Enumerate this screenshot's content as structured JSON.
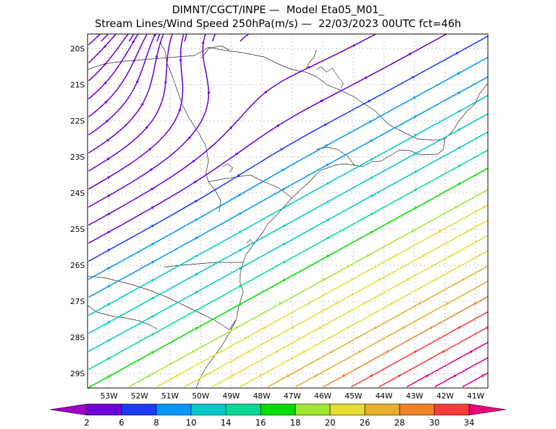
{
  "header": {
    "title_line1": "DIMNT/CGCT/INPE —  Model Eta05_M01_",
    "title_line2": "Stream Lines/Wind Speed 250hPa(m/s) —  22/03/2023 00UTC fct=46h"
  },
  "map": {
    "lat_labels": [
      "20S",
      "21S",
      "22S",
      "23S",
      "24S",
      "25S",
      "26S",
      "27S",
      "28S",
      "29S"
    ],
    "lon_labels": [
      "53W",
      "52W",
      "51W",
      "50W",
      "49W",
      "48W",
      "47W",
      "46W",
      "45W",
      "44W",
      "43W",
      "42W",
      "41W"
    ],
    "lat_range": [
      -29.4,
      -19.6
    ],
    "lon_range": [
      -53.7,
      -40.6
    ],
    "grid": "dotted"
  },
  "colorbar": {
    "ticks": [
      "2",
      "6",
      "8",
      "10",
      "14",
      "16",
      "18",
      "20",
      "26",
      "28",
      "30",
      "34"
    ],
    "colors": [
      "#a000c8",
      "#6e00dc",
      "#1e3cff",
      "#0096ff",
      "#00c8c8",
      "#00dc96",
      "#00dc00",
      "#a0e632",
      "#e6dc32",
      "#e6af2d",
      "#f08228",
      "#fa3c3c",
      "#e6007d"
    ]
  }
}
